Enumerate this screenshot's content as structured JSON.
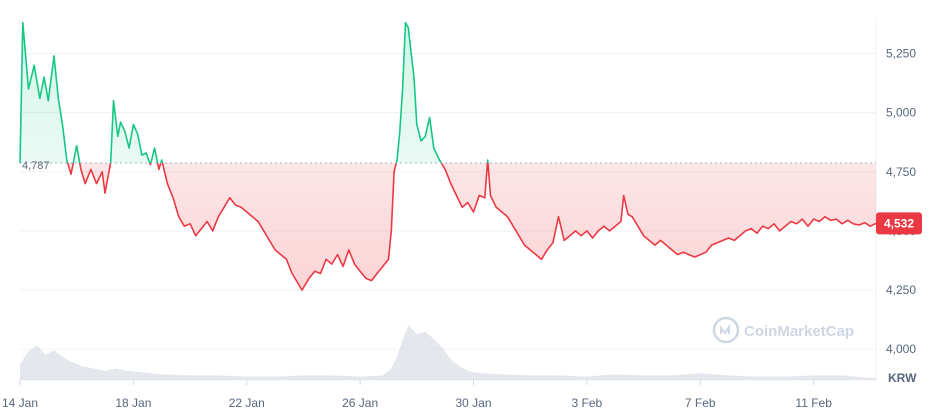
{
  "chart_data": {
    "type": "area",
    "title": "",
    "currency_label": "KRW",
    "watermark": "CoinMarketCap",
    "x_tick_labels": [
      "14 Jan",
      "18 Jan",
      "22 Jan",
      "26 Jan",
      "30 Jan",
      "3 Feb",
      "7 Feb",
      "11 Feb"
    ],
    "y_tick_values": [
      4000,
      4250,
      4500,
      4750,
      5000,
      5250
    ],
    "y_tick_labels": [
      "4,000",
      "4,250",
      "4,500",
      "4,750",
      "5,000",
      "5,250"
    ],
    "ylim": [
      3870,
      5400
    ],
    "xlim_days": [
      0,
      30.2
    ],
    "reference_value": 4787,
    "reference_label": "4,787",
    "last_value": 4532,
    "last_label": "4,532",
    "grid": true,
    "colors": {
      "above": "#16c784",
      "below": "#ea3943",
      "grid": "#eff2f5",
      "text": "#58667e",
      "volume": "#d9dde3"
    },
    "series": [
      {
        "values": [
          [
            0.0,
            4787
          ],
          [
            0.1,
            5380
          ],
          [
            0.3,
            5100
          ],
          [
            0.5,
            5200
          ],
          [
            0.7,
            5060
          ],
          [
            0.85,
            5150
          ],
          [
            1.0,
            5050
          ],
          [
            1.2,
            5240
          ],
          [
            1.35,
            5060
          ],
          [
            1.5,
            4950
          ],
          [
            1.65,
            4800
          ],
          [
            1.8,
            4740
          ],
          [
            2.0,
            4860
          ],
          [
            2.15,
            4760
          ],
          [
            2.3,
            4700
          ],
          [
            2.5,
            4760
          ],
          [
            2.7,
            4700
          ],
          [
            2.9,
            4750
          ],
          [
            3.0,
            4660
          ],
          [
            3.2,
            4790
          ],
          [
            3.3,
            5050
          ],
          [
            3.45,
            4900
          ],
          [
            3.55,
            4960
          ],
          [
            3.7,
            4920
          ],
          [
            3.85,
            4850
          ],
          [
            4.0,
            4950
          ],
          [
            4.15,
            4910
          ],
          [
            4.3,
            4820
          ],
          [
            4.45,
            4830
          ],
          [
            4.6,
            4780
          ],
          [
            4.75,
            4850
          ],
          [
            4.9,
            4760
          ],
          [
            5.0,
            4800
          ],
          [
            5.2,
            4700
          ],
          [
            5.4,
            4640
          ],
          [
            5.6,
            4560
          ],
          [
            5.8,
            4520
          ],
          [
            6.0,
            4530
          ],
          [
            6.2,
            4480
          ],
          [
            6.4,
            4510
          ],
          [
            6.6,
            4540
          ],
          [
            6.8,
            4500
          ],
          [
            7.0,
            4560
          ],
          [
            7.2,
            4600
          ],
          [
            7.4,
            4640
          ],
          [
            7.6,
            4610
          ],
          [
            7.8,
            4600
          ],
          [
            8.0,
            4580
          ],
          [
            8.2,
            4560
          ],
          [
            8.4,
            4540
          ],
          [
            8.6,
            4500
          ],
          [
            8.8,
            4460
          ],
          [
            9.0,
            4420
          ],
          [
            9.2,
            4400
          ],
          [
            9.4,
            4380
          ],
          [
            9.6,
            4320
          ],
          [
            9.8,
            4280
          ],
          [
            9.95,
            4250
          ],
          [
            10.2,
            4300
          ],
          [
            10.4,
            4330
          ],
          [
            10.6,
            4320
          ],
          [
            10.8,
            4380
          ],
          [
            11.0,
            4360
          ],
          [
            11.2,
            4400
          ],
          [
            11.4,
            4350
          ],
          [
            11.6,
            4420
          ],
          [
            11.8,
            4360
          ],
          [
            12.0,
            4330
          ],
          [
            12.2,
            4300
          ],
          [
            12.4,
            4290
          ],
          [
            12.6,
            4320
          ],
          [
            12.8,
            4350
          ],
          [
            13.0,
            4380
          ],
          [
            13.1,
            4500
          ],
          [
            13.2,
            4750
          ],
          [
            13.3,
            4800
          ],
          [
            13.4,
            4920
          ],
          [
            13.5,
            5100
          ],
          [
            13.6,
            5380
          ],
          [
            13.7,
            5360
          ],
          [
            13.8,
            5250
          ],
          [
            13.9,
            5150
          ],
          [
            14.0,
            4950
          ],
          [
            14.15,
            4880
          ],
          [
            14.3,
            4900
          ],
          [
            14.45,
            4980
          ],
          [
            14.6,
            4850
          ],
          [
            14.8,
            4800
          ],
          [
            15.0,
            4760
          ],
          [
            15.2,
            4700
          ],
          [
            15.4,
            4650
          ],
          [
            15.6,
            4600
          ],
          [
            15.8,
            4620
          ],
          [
            16.0,
            4580
          ],
          [
            16.2,
            4650
          ],
          [
            16.4,
            4640
          ],
          [
            16.5,
            4800
          ],
          [
            16.6,
            4650
          ],
          [
            16.8,
            4600
          ],
          [
            17.0,
            4580
          ],
          [
            17.2,
            4560
          ],
          [
            17.4,
            4520
          ],
          [
            17.6,
            4480
          ],
          [
            17.8,
            4440
          ],
          [
            18.0,
            4420
          ],
          [
            18.2,
            4400
          ],
          [
            18.4,
            4380
          ],
          [
            18.6,
            4420
          ],
          [
            18.8,
            4450
          ],
          [
            19.0,
            4560
          ],
          [
            19.2,
            4460
          ],
          [
            19.4,
            4480
          ],
          [
            19.6,
            4500
          ],
          [
            19.8,
            4480
          ],
          [
            20.0,
            4500
          ],
          [
            20.2,
            4470
          ],
          [
            20.4,
            4500
          ],
          [
            20.6,
            4520
          ],
          [
            20.8,
            4500
          ],
          [
            21.0,
            4520
          ],
          [
            21.2,
            4540
          ],
          [
            21.3,
            4650
          ],
          [
            21.45,
            4570
          ],
          [
            21.6,
            4560
          ],
          [
            21.8,
            4520
          ],
          [
            22.0,
            4480
          ],
          [
            22.2,
            4460
          ],
          [
            22.4,
            4440
          ],
          [
            22.6,
            4460
          ],
          [
            22.8,
            4440
          ],
          [
            23.0,
            4420
          ],
          [
            23.2,
            4400
          ],
          [
            23.4,
            4410
          ],
          [
            23.6,
            4400
          ],
          [
            23.8,
            4390
          ],
          [
            24.0,
            4400
          ],
          [
            24.2,
            4410
          ],
          [
            24.4,
            4440
          ],
          [
            24.6,
            4450
          ],
          [
            24.8,
            4460
          ],
          [
            25.0,
            4470
          ],
          [
            25.2,
            4460
          ],
          [
            25.4,
            4480
          ],
          [
            25.6,
            4500
          ],
          [
            25.8,
            4510
          ],
          [
            26.0,
            4490
          ],
          [
            26.2,
            4520
          ],
          [
            26.4,
            4510
          ],
          [
            26.6,
            4530
          ],
          [
            26.8,
            4500
          ],
          [
            27.0,
            4520
          ],
          [
            27.2,
            4540
          ],
          [
            27.4,
            4530
          ],
          [
            27.6,
            4550
          ],
          [
            27.8,
            4520
          ],
          [
            28.0,
            4550
          ],
          [
            28.2,
            4540
          ],
          [
            28.4,
            4560
          ],
          [
            28.6,
            4545
          ],
          [
            28.8,
            4550
          ],
          [
            29.0,
            4530
          ],
          [
            29.2,
            4545
          ],
          [
            29.4,
            4530
          ],
          [
            29.6,
            4525
          ],
          [
            29.8,
            4535
          ],
          [
            30.0,
            4520
          ],
          [
            30.2,
            4532
          ]
        ]
      }
    ],
    "volume": [
      [
        0.0,
        14
      ],
      [
        0.3,
        25
      ],
      [
        0.6,
        30
      ],
      [
        0.9,
        22
      ],
      [
        1.2,
        26
      ],
      [
        1.5,
        20
      ],
      [
        1.8,
        16
      ],
      [
        2.2,
        12
      ],
      [
        2.6,
        10
      ],
      [
        3.0,
        8
      ],
      [
        3.4,
        10
      ],
      [
        3.8,
        8
      ],
      [
        4.2,
        7
      ],
      [
        4.6,
        6
      ],
      [
        5.0,
        5
      ],
      [
        6.0,
        4
      ],
      [
        7.0,
        4
      ],
      [
        8.0,
        3
      ],
      [
        9.0,
        3
      ],
      [
        10.0,
        4
      ],
      [
        11.0,
        4
      ],
      [
        12.0,
        3
      ],
      [
        12.8,
        4
      ],
      [
        13.1,
        10
      ],
      [
        13.3,
        20
      ],
      [
        13.5,
        35
      ],
      [
        13.7,
        48
      ],
      [
        13.85,
        44
      ],
      [
        14.0,
        40
      ],
      [
        14.3,
        42
      ],
      [
        14.6,
        36
      ],
      [
        14.9,
        28
      ],
      [
        15.2,
        18
      ],
      [
        15.5,
        12
      ],
      [
        15.8,
        8
      ],
      [
        16.2,
        6
      ],
      [
        17.0,
        5
      ],
      [
        18.0,
        4
      ],
      [
        19.0,
        4
      ],
      [
        20.0,
        3
      ],
      [
        21.0,
        5
      ],
      [
        22.0,
        4
      ],
      [
        23.0,
        4
      ],
      [
        24.0,
        6
      ],
      [
        25.0,
        4
      ],
      [
        26.0,
        3
      ],
      [
        27.0,
        3
      ],
      [
        28.0,
        4
      ],
      [
        29.0,
        4
      ],
      [
        30.0,
        2
      ],
      [
        30.2,
        2
      ]
    ]
  }
}
